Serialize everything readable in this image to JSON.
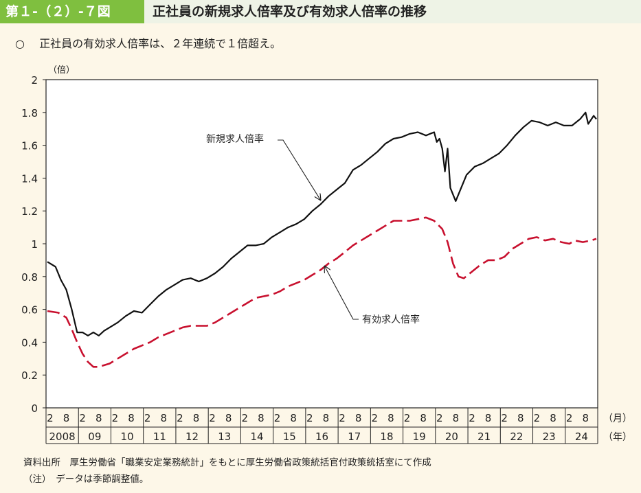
{
  "header": {
    "figure_number": "第１-（２）-７図",
    "title": "正社員の新規求人倍率及び有効求人倍率の推移"
  },
  "subtitle": {
    "bullet": "○",
    "text": "正社員の有効求人倍率は、２年連続で１倍超え。"
  },
  "footnotes": {
    "source": "資料出所　厚生労働省「職業安定業務統計」をもとに厚生労働省政策統括官付政策統括室にて作成",
    "note": "（注）　データは季節調整値。"
  },
  "chart_data": {
    "type": "line",
    "ylabel": "（倍）",
    "ylim": [
      0,
      2
    ],
    "yticks": [
      "0",
      "0.2",
      "0.4",
      "0.6",
      "0.8",
      "1",
      "1.2",
      "1.4",
      "1.6",
      "1.8",
      "2"
    ],
    "x_month_ticks": [
      "2",
      "8"
    ],
    "x_years": [
      "2008",
      "09",
      "10",
      "11",
      "12",
      "13",
      "14",
      "15",
      "16",
      "17",
      "18",
      "19",
      "20",
      "21",
      "22",
      "23",
      "24"
    ],
    "x_month_unit": "（月）",
    "x_year_unit": "（年）",
    "grid": false,
    "series": [
      {
        "name": "新規求人倍率",
        "color": "#111111",
        "style": "solid",
        "points": [
          [
            "2008-01",
            0.89
          ],
          [
            "2008-04",
            0.86
          ],
          [
            "2008-06",
            0.78
          ],
          [
            "2008-08",
            0.72
          ],
          [
            "2008-10",
            0.6
          ],
          [
            "2008-11",
            0.53
          ],
          [
            "2008-12",
            0.46
          ],
          [
            "2009-02",
            0.46
          ],
          [
            "2009-04",
            0.44
          ],
          [
            "2009-06",
            0.46
          ],
          [
            "2009-08",
            0.44
          ],
          [
            "2009-10",
            0.47
          ],
          [
            "2009-12",
            0.49
          ],
          [
            "2010-03",
            0.52
          ],
          [
            "2010-06",
            0.56
          ],
          [
            "2010-09",
            0.59
          ],
          [
            "2010-12",
            0.58
          ],
          [
            "2011-03",
            0.63
          ],
          [
            "2011-06",
            0.68
          ],
          [
            "2011-09",
            0.72
          ],
          [
            "2011-12",
            0.75
          ],
          [
            "2012-03",
            0.78
          ],
          [
            "2012-06",
            0.79
          ],
          [
            "2012-09",
            0.77
          ],
          [
            "2012-12",
            0.79
          ],
          [
            "2013-03",
            0.82
          ],
          [
            "2013-06",
            0.86
          ],
          [
            "2013-09",
            0.91
          ],
          [
            "2013-12",
            0.95
          ],
          [
            "2014-03",
            0.99
          ],
          [
            "2014-06",
            0.99
          ],
          [
            "2014-09",
            1.0
          ],
          [
            "2014-12",
            1.04
          ],
          [
            "2015-03",
            1.07
          ],
          [
            "2015-06",
            1.1
          ],
          [
            "2015-09",
            1.12
          ],
          [
            "2015-12",
            1.15
          ],
          [
            "2016-03",
            1.2
          ],
          [
            "2016-06",
            1.24
          ],
          [
            "2016-09",
            1.29
          ],
          [
            "2016-12",
            1.33
          ],
          [
            "2017-03",
            1.37
          ],
          [
            "2017-06",
            1.45
          ],
          [
            "2017-09",
            1.48
          ],
          [
            "2017-12",
            1.52
          ],
          [
            "2018-03",
            1.56
          ],
          [
            "2018-06",
            1.61
          ],
          [
            "2018-09",
            1.64
          ],
          [
            "2018-12",
            1.65
          ],
          [
            "2019-03",
            1.67
          ],
          [
            "2019-06",
            1.68
          ],
          [
            "2019-09",
            1.66
          ],
          [
            "2019-12",
            1.68
          ],
          [
            "2020-01",
            1.62
          ],
          [
            "2020-02",
            1.64
          ],
          [
            "2020-03",
            1.58
          ],
          [
            "2020-04",
            1.44
          ],
          [
            "2020-05",
            1.58
          ],
          [
            "2020-06",
            1.34
          ],
          [
            "2020-07",
            1.3
          ],
          [
            "2020-08",
            1.26
          ],
          [
            "2020-10",
            1.34
          ],
          [
            "2020-12",
            1.42
          ],
          [
            "2021-03",
            1.47
          ],
          [
            "2021-06",
            1.49
          ],
          [
            "2021-09",
            1.52
          ],
          [
            "2021-12",
            1.55
          ],
          [
            "2022-03",
            1.6
          ],
          [
            "2022-06",
            1.66
          ],
          [
            "2022-09",
            1.71
          ],
          [
            "2022-12",
            1.75
          ],
          [
            "2023-03",
            1.74
          ],
          [
            "2023-06",
            1.72
          ],
          [
            "2023-09",
            1.74
          ],
          [
            "2023-12",
            1.72
          ],
          [
            "2024-03",
            1.72
          ],
          [
            "2024-06",
            1.76
          ],
          [
            "2024-08",
            1.8
          ],
          [
            "2024-09",
            1.73
          ],
          [
            "2024-11",
            1.78
          ],
          [
            "2024-12",
            1.76
          ]
        ]
      },
      {
        "name": "有効求人倍率",
        "color": "#c8102e",
        "style": "dashed",
        "points": [
          [
            "2008-01",
            0.59
          ],
          [
            "2008-05",
            0.58
          ],
          [
            "2008-08",
            0.55
          ],
          [
            "2008-10",
            0.48
          ],
          [
            "2008-12",
            0.4
          ],
          [
            "2009-02",
            0.33
          ],
          [
            "2009-04",
            0.28
          ],
          [
            "2009-06",
            0.25
          ],
          [
            "2009-08",
            0.25
          ],
          [
            "2009-10",
            0.26
          ],
          [
            "2009-12",
            0.27
          ],
          [
            "2010-03",
            0.3
          ],
          [
            "2010-06",
            0.33
          ],
          [
            "2010-09",
            0.36
          ],
          [
            "2010-12",
            0.38
          ],
          [
            "2011-03",
            0.4
          ],
          [
            "2011-06",
            0.43
          ],
          [
            "2011-09",
            0.45
          ],
          [
            "2011-12",
            0.47
          ],
          [
            "2012-03",
            0.49
          ],
          [
            "2012-06",
            0.5
          ],
          [
            "2012-09",
            0.5
          ],
          [
            "2012-12",
            0.5
          ],
          [
            "2013-03",
            0.52
          ],
          [
            "2013-06",
            0.55
          ],
          [
            "2013-09",
            0.58
          ],
          [
            "2013-12",
            0.61
          ],
          [
            "2014-03",
            0.64
          ],
          [
            "2014-06",
            0.67
          ],
          [
            "2014-09",
            0.68
          ],
          [
            "2014-12",
            0.69
          ],
          [
            "2015-03",
            0.71
          ],
          [
            "2015-06",
            0.74
          ],
          [
            "2015-09",
            0.76
          ],
          [
            "2015-12",
            0.78
          ],
          [
            "2016-03",
            0.81
          ],
          [
            "2016-06",
            0.84
          ],
          [
            "2016-09",
            0.88
          ],
          [
            "2016-12",
            0.91
          ],
          [
            "2017-03",
            0.95
          ],
          [
            "2017-06",
            0.99
          ],
          [
            "2017-09",
            1.02
          ],
          [
            "2017-12",
            1.05
          ],
          [
            "2018-03",
            1.08
          ],
          [
            "2018-06",
            1.11
          ],
          [
            "2018-09",
            1.14
          ],
          [
            "2018-12",
            1.14
          ],
          [
            "2019-03",
            1.14
          ],
          [
            "2019-06",
            1.15
          ],
          [
            "2019-09",
            1.16
          ],
          [
            "2019-12",
            1.14
          ],
          [
            "2020-03",
            1.09
          ],
          [
            "2020-05",
            1.01
          ],
          [
            "2020-07",
            0.88
          ],
          [
            "2020-09",
            0.8
          ],
          [
            "2020-11",
            0.79
          ],
          [
            "2021-02",
            0.83
          ],
          [
            "2021-05",
            0.87
          ],
          [
            "2021-08",
            0.9
          ],
          [
            "2021-11",
            0.9
          ],
          [
            "2022-02",
            0.92
          ],
          [
            "2022-05",
            0.97
          ],
          [
            "2022-08",
            1.0
          ],
          [
            "2022-11",
            1.03
          ],
          [
            "2023-02",
            1.04
          ],
          [
            "2023-05",
            1.02
          ],
          [
            "2023-08",
            1.03
          ],
          [
            "2023-11",
            1.01
          ],
          [
            "2024-02",
            1.0
          ],
          [
            "2024-04",
            1.02
          ],
          [
            "2024-07",
            1.01
          ],
          [
            "2024-10",
            1.02
          ],
          [
            "2024-12",
            1.03
          ]
        ]
      }
    ],
    "annotations": [
      {
        "text": "新規求人倍率",
        "series": "新規求人倍率",
        "points_to": [
          "2016-06",
          1.25
        ]
      },
      {
        "text": "有効求人倍率",
        "series": "有効求人倍率",
        "points_to": [
          "2016-07",
          0.88
        ]
      }
    ]
  }
}
